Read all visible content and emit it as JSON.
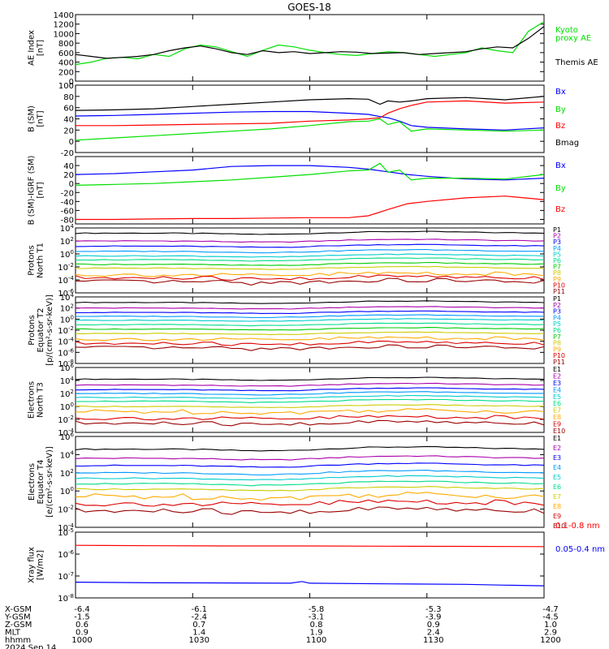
{
  "title": "GOES-18",
  "chart_data": [
    {
      "type": "line",
      "id": "ae",
      "ylabel": [
        "AE Index",
        "[nT]"
      ],
      "ylim": [
        0,
        1400
      ],
      "yticks": [
        "0",
        "200",
        "400",
        "600",
        "800",
        "1000",
        "1200",
        "1400"
      ],
      "ytick_values": [
        0,
        200,
        400,
        600,
        800,
        1000,
        1200,
        1400
      ],
      "legend": [
        {
          "text": "Kyoto",
          "color": "#00e000"
        },
        {
          "text": "proxy AE",
          "color": "#00e000"
        },
        {
          "text": "Themis AE",
          "color": "#000000"
        }
      ],
      "series": [
        {
          "name": "Kyoto proxy AE",
          "color": "#00e000",
          "x": [
            0,
            0.4,
            0.8,
            1.2,
            1.6,
            2,
            2.4,
            2.8,
            3.2,
            3.6,
            4,
            4.4,
            4.8,
            5.2,
            5.6,
            6,
            6.4,
            6.8,
            7.2,
            7.6,
            8,
            8.4,
            8.8,
            9.2,
            9.6,
            10,
            10.4,
            10.8,
            11.2,
            11.6,
            12
          ],
          "y": [
            350,
            400,
            480,
            500,
            470,
            560,
            520,
            680,
            760,
            720,
            620,
            520,
            650,
            760,
            720,
            650,
            600,
            560,
            540,
            580,
            620,
            600,
            560,
            520,
            560,
            600,
            700,
            640,
            600,
            1050,
            1250
          ]
        },
        {
          "name": "Themis AE",
          "color": "#000000",
          "x": [
            0,
            0.4,
            0.8,
            1.2,
            1.6,
            2,
            2.4,
            2.8,
            3.2,
            3.6,
            4,
            4.4,
            4.8,
            5.2,
            5.6,
            6,
            6.4,
            6.8,
            7.2,
            7.6,
            8,
            8.4,
            8.8,
            9.2,
            9.6,
            10,
            10.4,
            10.8,
            11.2,
            11.6,
            12
          ],
          "y": [
            560,
            520,
            480,
            500,
            520,
            560,
            640,
            700,
            740,
            680,
            600,
            560,
            640,
            600,
            620,
            580,
            600,
            620,
            610,
            580,
            590,
            600,
            560,
            580,
            600,
            620,
            680,
            720,
            700,
            900,
            1150
          ]
        }
      ]
    },
    {
      "type": "line",
      "id": "bsm",
      "ylabel": [
        "B (SM)",
        "[nT]"
      ],
      "ylim": [
        -20,
        100
      ],
      "yticks": [
        "-20",
        "0",
        "20",
        "40",
        "60",
        "80",
        "100"
      ],
      "ytick_values": [
        -20,
        0,
        20,
        40,
        60,
        80,
        100
      ],
      "legend": [
        {
          "text": "Bx",
          "color": "#0000ff"
        },
        {
          "text": "By",
          "color": "#00e000"
        },
        {
          "text": "Bz",
          "color": "#ff0000"
        },
        {
          "text": "Bmag",
          "color": "#000000"
        }
      ],
      "series": [
        {
          "name": "Bx",
          "color": "#0000ff",
          "x": [
            0,
            1,
            2,
            3,
            4,
            5,
            6,
            7,
            7.5,
            7.8,
            8,
            8.3,
            8.6,
            9,
            10,
            11,
            12
          ],
          "y": [
            45,
            46,
            48,
            50,
            52,
            53,
            53,
            50,
            48,
            44,
            42,
            36,
            28,
            25,
            22,
            20,
            24
          ]
        },
        {
          "name": "By",
          "color": "#00e000",
          "x": [
            0,
            1,
            2,
            3,
            4,
            5,
            6,
            7,
            7.5,
            7.8,
            8,
            8.3,
            8.6,
            9,
            10,
            11,
            12
          ],
          "y": [
            2,
            6,
            10,
            14,
            18,
            22,
            28,
            35,
            36,
            40,
            30,
            35,
            18,
            22,
            20,
            18,
            20
          ]
        },
        {
          "name": "Bz",
          "color": "#ff0000",
          "x": [
            0,
            1,
            2,
            3,
            4,
            5,
            6,
            7,
            7.5,
            7.8,
            8,
            8.3,
            8.6,
            9,
            10,
            11,
            12
          ],
          "y": [
            28,
            28,
            29,
            30,
            31,
            32,
            36,
            38,
            40,
            42,
            50,
            58,
            64,
            70,
            72,
            68,
            70
          ]
        },
        {
          "name": "Bmag",
          "color": "#000000",
          "x": [
            0,
            1,
            2,
            3,
            4,
            5,
            6,
            7,
            7.5,
            7.8,
            8,
            8.3,
            8.6,
            9,
            10,
            11,
            12
          ],
          "y": [
            55,
            56,
            58,
            62,
            66,
            70,
            74,
            76,
            75,
            66,
            72,
            70,
            72,
            76,
            78,
            74,
            80
          ]
        }
      ]
    },
    {
      "type": "line",
      "id": "bigrf",
      "ylabel": [
        "B (SM)-IGRF (SM)",
        "[nT]"
      ],
      "ylim": [
        -90,
        60
      ],
      "yticks": [
        "-80",
        "-60",
        "-40",
        "-20",
        "0",
        "20",
        "40"
      ],
      "ytick_values": [
        -80,
        -60,
        -40,
        -20,
        0,
        20,
        40
      ],
      "legend": [
        {
          "text": "Bx",
          "color": "#0000ff"
        },
        {
          "text": "By",
          "color": "#00e000"
        },
        {
          "text": "Bz",
          "color": "#ff0000"
        }
      ],
      "series": [
        {
          "name": "Bx",
          "color": "#0000ff",
          "x": [
            0,
            1,
            2,
            3,
            4,
            5,
            6,
            7,
            7.5,
            8,
            8.5,
            9,
            10,
            11,
            12
          ],
          "y": [
            20,
            22,
            26,
            30,
            38,
            40,
            40,
            36,
            32,
            26,
            20,
            16,
            10,
            8,
            12
          ]
        },
        {
          "name": "By",
          "color": "#00e000",
          "x": [
            0,
            1,
            2,
            3,
            4,
            5,
            6,
            7,
            7.5,
            7.8,
            8,
            8.3,
            8.6,
            9,
            10,
            11,
            12
          ],
          "y": [
            -4,
            -2,
            0,
            4,
            8,
            14,
            20,
            28,
            30,
            45,
            25,
            30,
            8,
            12,
            12,
            10,
            20
          ]
        },
        {
          "name": "Bz",
          "color": "#ff0000",
          "x": [
            0,
            1,
            2,
            3,
            4,
            5,
            6,
            7,
            7.5,
            8,
            8.5,
            9,
            10,
            11,
            12
          ],
          "y": [
            -80,
            -80,
            -79,
            -78,
            -78,
            -77,
            -76,
            -76,
            -72,
            -58,
            -45,
            -40,
            -32,
            -28,
            -36
          ]
        }
      ]
    },
    {
      "type": "line",
      "id": "protons-t1",
      "log": true,
      "ylabel": [
        "Protons",
        "North T1"
      ],
      "ylim_exp": [
        -6,
        4
      ],
      "yticks": [
        "10^-6",
        "10^-4",
        "10^-2",
        "10^0",
        "10^2",
        "10^4"
      ],
      "ytick_exps": [
        -6,
        -4,
        -2,
        0,
        2,
        4
      ],
      "channels": [
        "P1",
        "P2",
        "P3",
        "P4",
        "P5",
        "P6",
        "P7",
        "P8",
        "P9",
        "P10",
        "P11"
      ],
      "channel_colors": [
        "#000000",
        "#aa00aa",
        "#0000ff",
        "#0099ff",
        "#00cccc",
        "#00dd88",
        "#00cc00",
        "#cccc00",
        "#ffaa00",
        "#dd0000",
        "#990000"
      ],
      "levels_log10": [
        3.2,
        2.0,
        1.2,
        0.4,
        -0.3,
        -0.9,
        -1.6,
        -2.2,
        -3.2,
        -3.7,
        -4.3
      ]
    },
    {
      "type": "line",
      "id": "protons-t2",
      "log": true,
      "ylabel": [
        "Protons",
        "Equator T2",
        "[p/(cm²-s-sr-keV)]"
      ],
      "ylim_exp": [
        -8,
        4
      ],
      "yticks": [
        "10^-8",
        "10^-6",
        "10^-4",
        "10^-2",
        "10^0",
        "10^2",
        "10^4"
      ],
      "ytick_exps": [
        -8,
        -6,
        -4,
        -2,
        0,
        2,
        4
      ],
      "channels": [
        "P1",
        "P2",
        "P3",
        "P4",
        "P5",
        "P6",
        "P7",
        "P8",
        "P9",
        "P10",
        "P11"
      ],
      "channel_colors": [
        "#000000",
        "#aa00aa",
        "#0000ff",
        "#0099ff",
        "#00cccc",
        "#00dd88",
        "#00cc00",
        "#cccc00",
        "#ffaa00",
        "#dd0000",
        "#990000"
      ],
      "levels_log10": [
        3.0,
        2.0,
        1.2,
        0.5,
        -0.2,
        -1.0,
        -1.8,
        -2.6,
        -3.6,
        -4.4,
        -5.2
      ]
    },
    {
      "type": "line",
      "id": "electrons-t3",
      "log": true,
      "ylabel": [
        "Electrons",
        "North T3"
      ],
      "ylim_exp": [
        -4,
        6
      ],
      "yticks": [
        "10^-4",
        "10^-2",
        "10^0",
        "10^2",
        "10^4",
        "10^6"
      ],
      "ytick_exps": [
        -4,
        -2,
        0,
        2,
        4,
        6
      ],
      "channels": [
        "E1",
        "E2",
        "E3",
        "E4",
        "E5",
        "E6",
        "E7",
        "E8",
        "E9",
        "E10"
      ],
      "channel_colors": [
        "#000000",
        "#aa00aa",
        "#0000ff",
        "#0099ff",
        "#00cccc",
        "#00dd88",
        "#cccc00",
        "#ffaa00",
        "#dd0000",
        "#990000"
      ],
      "levels_log10": [
        4.2,
        3.3,
        2.6,
        2.0,
        1.4,
        0.8,
        0.0,
        -0.8,
        -1.8,
        -2.6
      ]
    },
    {
      "type": "line",
      "id": "electrons-t4",
      "log": true,
      "ylabel": [
        "Electrons",
        "Equator T4",
        "[e/(cm²-s-sr-keV)]"
      ],
      "ylim_exp": [
        -4,
        6
      ],
      "yticks": [
        "10^-4",
        "10^-2",
        "10^0",
        "10^2",
        "10^4",
        "10^6"
      ],
      "ytick_exps": [
        -4,
        -2,
        0,
        2,
        4,
        6
      ],
      "channels": [
        "E1",
        "E2",
        "E3",
        "E4",
        "E5",
        "E6",
        "E7",
        "E8",
        "E9",
        "E10"
      ],
      "channel_colors": [
        "#000000",
        "#aa00aa",
        "#0000ff",
        "#0099ff",
        "#00cccc",
        "#00dd88",
        "#cccc00",
        "#ffaa00",
        "#dd0000",
        "#990000"
      ],
      "levels_log10": [
        4.6,
        3.6,
        2.8,
        2.0,
        1.4,
        0.8,
        0.2,
        -0.6,
        -1.4,
        -2.2
      ]
    },
    {
      "type": "line",
      "id": "xray",
      "log": true,
      "ylabel": [
        "Xray flux",
        "[W/m2]"
      ],
      "ylim_exp": [
        -8,
        -5
      ],
      "yticks": [
        "10^-8",
        "10^-7",
        "10^-6",
        "10^-5"
      ],
      "ytick_exps": [
        -8,
        -7,
        -6,
        -5
      ],
      "legend": [
        {
          "text": "0.1-0.8 nm",
          "color": "#ff0000"
        },
        {
          "text": "0.05-0.4 nm",
          "color": "#0000ff"
        }
      ],
      "series": [
        {
          "name": "0.1-0.8 nm",
          "color": "#ff0000",
          "x": [
            0,
            2,
            4,
            6,
            8,
            10,
            12
          ],
          "y_log10": [
            -5.6,
            -5.62,
            -5.63,
            -5.63,
            -5.64,
            -5.65,
            -5.66
          ]
        },
        {
          "name": "0.05-0.4 nm",
          "color": "#0000ff",
          "x": [
            0,
            2,
            4,
            5.5,
            5.8,
            6,
            8,
            10,
            11,
            12
          ],
          "y_log10": [
            -7.28,
            -7.31,
            -7.32,
            -7.33,
            -7.25,
            -7.33,
            -7.36,
            -7.38,
            -7.42,
            -7.45
          ]
        }
      ]
    }
  ],
  "xaxis": {
    "rows": [
      {
        "label": "X-GSM",
        "values": [
          "-6.4",
          "-6.1",
          "-5.8",
          "-5.3",
          "-4.7"
        ]
      },
      {
        "label": "Y-GSM",
        "values": [
          "-1.5",
          "-2.4",
          "-3.1",
          "-3.9",
          "-4.5"
        ]
      },
      {
        "label": "Z-GSM",
        "values": [
          "0.6",
          "0.7",
          "0.8",
          "0.9",
          "1.0"
        ]
      },
      {
        "label": "MLT",
        "values": [
          "0.9",
          "1.4",
          "1.9",
          "2.4",
          "2.9"
        ]
      },
      {
        "label": "hhmm",
        "values": [
          "1000",
          "1030",
          "1100",
          "1130",
          "1200"
        ]
      }
    ],
    "date": "2024 Sep 14"
  }
}
